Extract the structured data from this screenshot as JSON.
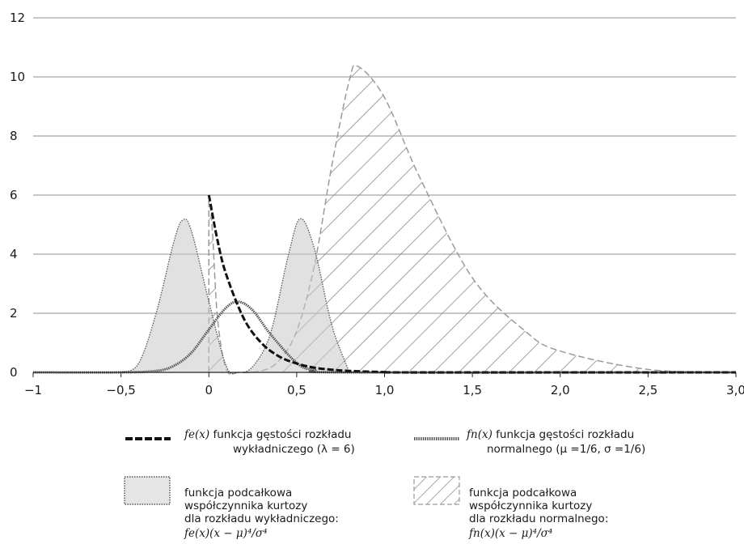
{
  "chart_data": {
    "type": "area",
    "xlim": [
      -1,
      3
    ],
    "ylim": [
      0,
      12
    ],
    "x_ticks": [
      "−1",
      "−0,5",
      "0",
      "0,5",
      "1,0",
      "1,5",
      "2,0",
      "2,5",
      "3,0"
    ],
    "x_tick_values": [
      -1,
      -0.5,
      0,
      0.5,
      1.0,
      1.5,
      2.0,
      2.5,
      3.0
    ],
    "y_ticks": [
      "0",
      "2",
      "4",
      "6",
      "8",
      "10",
      "12"
    ],
    "y_tick_values": [
      0,
      2,
      4,
      6,
      8,
      10,
      12
    ],
    "grid": "horizontal",
    "parameters": {
      "lambda": 6,
      "mu": 0.1667,
      "sigma": 0.1667
    },
    "series": [
      {
        "name": "fe(x) funkcja gęstości rozkładu wykładniczego (λ = 6)",
        "style": "dashed-bold-black",
        "x": [
          0,
          0.05,
          0.1,
          0.2,
          0.3,
          0.4,
          0.5,
          0.6,
          0.7,
          0.8,
          1.0,
          1.2
        ],
        "values": [
          6.0,
          4.45,
          3.29,
          1.81,
          0.99,
          0.54,
          0.3,
          0.16,
          0.09,
          0.05,
          0.01,
          0.0
        ]
      },
      {
        "name": "fn(x) funkcja gęstości rozkładu normalnego (μ = 1/6, σ = 1/6)",
        "style": "dotted-bold-gray",
        "x": [
          -0.5,
          -0.3,
          -0.2,
          -0.1,
          0,
          0.1,
          0.17,
          0.25,
          0.35,
          0.5,
          0.6,
          0.8
        ],
        "values": [
          0.0,
          0.05,
          0.22,
          0.66,
          1.45,
          2.2,
          2.39,
          2.1,
          1.3,
          0.32,
          0.08,
          0.0
        ]
      },
      {
        "name": "funkcja podcałkowa współczynnika kurtozy dla rozkładu wykładniczego",
        "style": "fill-light-gray-dotted-outline",
        "x": [
          -0.5,
          -0.4,
          -0.3,
          -0.2,
          -0.15,
          -0.1,
          0,
          0.1,
          0.17,
          0.25,
          0.35,
          0.45,
          0.52,
          0.6,
          0.7,
          0.8
        ],
        "values": [
          0.0,
          0.3,
          2.0,
          4.4,
          5.15,
          4.8,
          2.4,
          0.2,
          0.0,
          0.2,
          1.3,
          3.9,
          5.2,
          4.2,
          1.6,
          0.0
        ]
      },
      {
        "name": "funkcja podcałkowa współczynnika kurtozy dla rozkładu normalnego",
        "style": "hatched-dashed-outline",
        "x": [
          0,
          0.02,
          0.05,
          0.1,
          0.17,
          0.3,
          0.4,
          0.5,
          0.6,
          0.7,
          0.8,
          0.85,
          1.0,
          1.2,
          1.5,
          1.8,
          2.0,
          2.5,
          3.0
        ],
        "values": [
          6.0,
          4.8,
          1.8,
          0.1,
          0.0,
          0.05,
          0.4,
          1.4,
          3.6,
          7.0,
          9.9,
          10.35,
          9.3,
          6.6,
          3.2,
          1.4,
          0.72,
          0.1,
          0.0
        ]
      }
    ],
    "legend": [
      {
        "label": "funkcja gęstości rozkładu",
        "label2": "wykładniczego (λ = 6)",
        "math": "fe(x)"
      },
      {
        "label": "funkcja gęstości rozkładu",
        "label2": "normalnego (μ =1/6,  σ =1/6)",
        "math": "fn(x)"
      },
      {
        "label": "funkcja podcałkowa",
        "label2": "współczynnika kurtozy",
        "label3": "dla rozkładu wykładniczego:",
        "math": "fe(x)(x − μ)⁴/σ⁴"
      },
      {
        "label": "funkcja podcałkowa",
        "label2": "współczynnika kurtozy",
        "label3": "dla rozkładu normalnego:",
        "math": "fn(x)(x − μ)⁴/σ⁴"
      }
    ],
    "legend_placement": "bottom"
  }
}
